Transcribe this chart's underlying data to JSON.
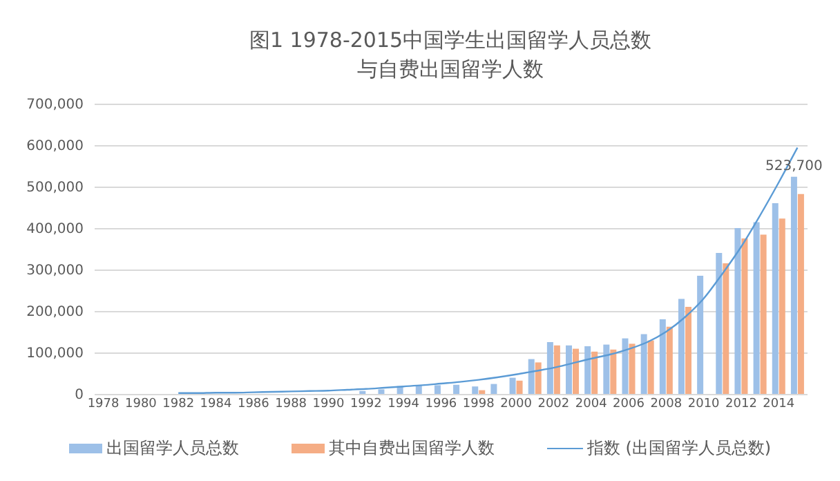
{
  "chart_data": {
    "type": "bar",
    "title": "图1 1978-2015中国学生出国留学人员总数",
    "subtitle": "与自费出国留学人数",
    "categories": [
      "1978",
      null,
      "1980",
      null,
      "1982",
      null,
      "1984",
      null,
      "1986",
      null,
      "1988",
      null,
      "1990",
      null,
      "1992",
      null,
      "1994",
      null,
      "1996",
      null,
      "1998",
      null,
      "2000",
      null,
      "2002",
      null,
      "2004",
      null,
      "2006",
      null,
      "2008",
      null,
      "2010",
      null,
      "2012",
      null,
      "2014",
      null
    ],
    "series": [
      {
        "name": "出国留学人员总数",
        "color": "#9dc0e8",
        "values": [
          null,
          null,
          null,
          null,
          null,
          null,
          null,
          null,
          null,
          null,
          null,
          null,
          null,
          null,
          7000,
          11000,
          19000,
          20000,
          21000,
          22000,
          18000,
          24000,
          39000,
          84000,
          125000,
          117000,
          115000,
          119000,
          134000,
          144000,
          180000,
          229000,
          285000,
          340000,
          400000,
          414000,
          460000,
          523700
        ],
        "value_labels": [
          null,
          null,
          null,
          null,
          null,
          null,
          null,
          null,
          null,
          null,
          null,
          null,
          null,
          null,
          null,
          null,
          null,
          null,
          null,
          null,
          null,
          null,
          null,
          null,
          null,
          null,
          null,
          null,
          null,
          null,
          null,
          null,
          null,
          null,
          null,
          null,
          null,
          "523,700"
        ]
      },
      {
        "name": "其中自费出国留学人数",
        "color": "#f5ad85",
        "values": [
          null,
          null,
          null,
          null,
          null,
          null,
          null,
          null,
          null,
          null,
          null,
          null,
          null,
          null,
          null,
          null,
          null,
          null,
          null,
          null,
          9000,
          null,
          32000,
          76000,
          117000,
          109000,
          102000,
          107000,
          121000,
          129000,
          162000,
          210000,
          null,
          315000,
          375000,
          384000,
          423000,
          482000
        ]
      },
      {
        "name": "指数 (出国留学人员总数)",
        "type": "line",
        "color": "#5b9bd5",
        "values": [
          null,
          null,
          null,
          null,
          2000,
          2000,
          3000,
          3000,
          4000,
          5000,
          6000,
          7000,
          8000,
          10000,
          12000,
          15000,
          18000,
          21000,
          25000,
          29000,
          34000,
          40000,
          47000,
          55000,
          63000,
          74000,
          85000,
          95000,
          108000,
          125000,
          150000,
          185000,
          230000,
          290000,
          355000,
          430000,
          510000,
          594000
        ]
      }
    ],
    "ylim": [
      0,
      700000
    ],
    "yticks": [
      {
        "value": 0,
        "label": "0"
      },
      {
        "value": 100000,
        "label": "100,000"
      },
      {
        "value": 200000,
        "label": "200,000"
      },
      {
        "value": 300000,
        "label": "300,000"
      },
      {
        "value": 400000,
        "label": "400,000"
      },
      {
        "value": 500000,
        "label": "500,000"
      },
      {
        "value": 600000,
        "label": "600,000"
      },
      {
        "value": 700000,
        "label": "700,000"
      }
    ],
    "grid": "y",
    "legend": "bottom"
  }
}
